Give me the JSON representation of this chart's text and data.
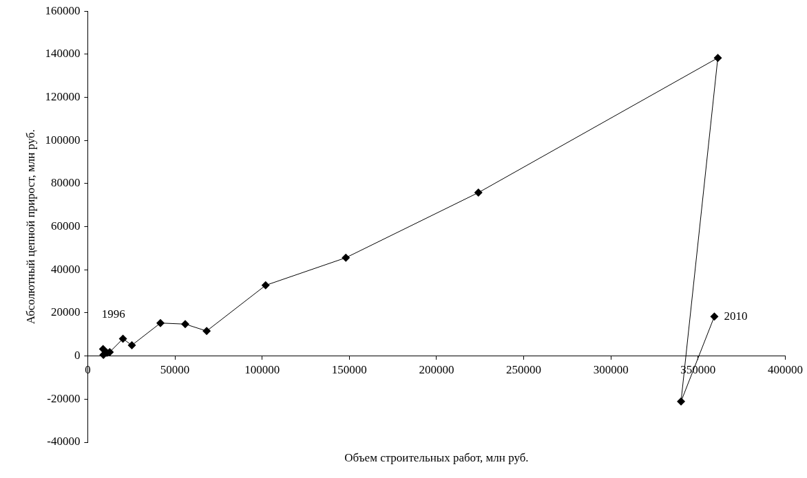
{
  "chart_data": {
    "type": "line",
    "xlabel": "Объем строительных работ, млн руб.",
    "ylabel": "Абсолютный цепной прирост, млн руб.",
    "series": [
      {
        "color": "#000000",
        "x": [
          8800,
          9000,
          11000,
          12600,
          20200,
          25300,
          41700,
          55900,
          68200,
          102000,
          148000,
          224000,
          361300,
          340200,
          359300
        ],
        "values": [
          3200,
          500,
          1500,
          1800,
          8000,
          5000,
          15300,
          14800,
          11600,
          32800,
          45600,
          75800,
          138300,
          -21100,
          18300
        ]
      }
    ],
    "xlim": [
      0,
      400000
    ],
    "xticks": [
      0,
      50000,
      100000,
      150000,
      200000,
      250000,
      300000,
      350000,
      400000
    ],
    "ylim": [
      -40000,
      160000
    ],
    "yticks": [
      -40000,
      -20000,
      0,
      20000,
      40000,
      60000,
      80000,
      100000,
      120000,
      140000,
      160000
    ],
    "marker": "diamond",
    "line_style": "solid",
    "grid": false,
    "legend": false,
    "annotations": [
      {
        "text": "1996",
        "x": 8800,
        "y": 3200
      },
      {
        "text": "2010",
        "x": 359300,
        "y": 18300
      }
    ]
  }
}
